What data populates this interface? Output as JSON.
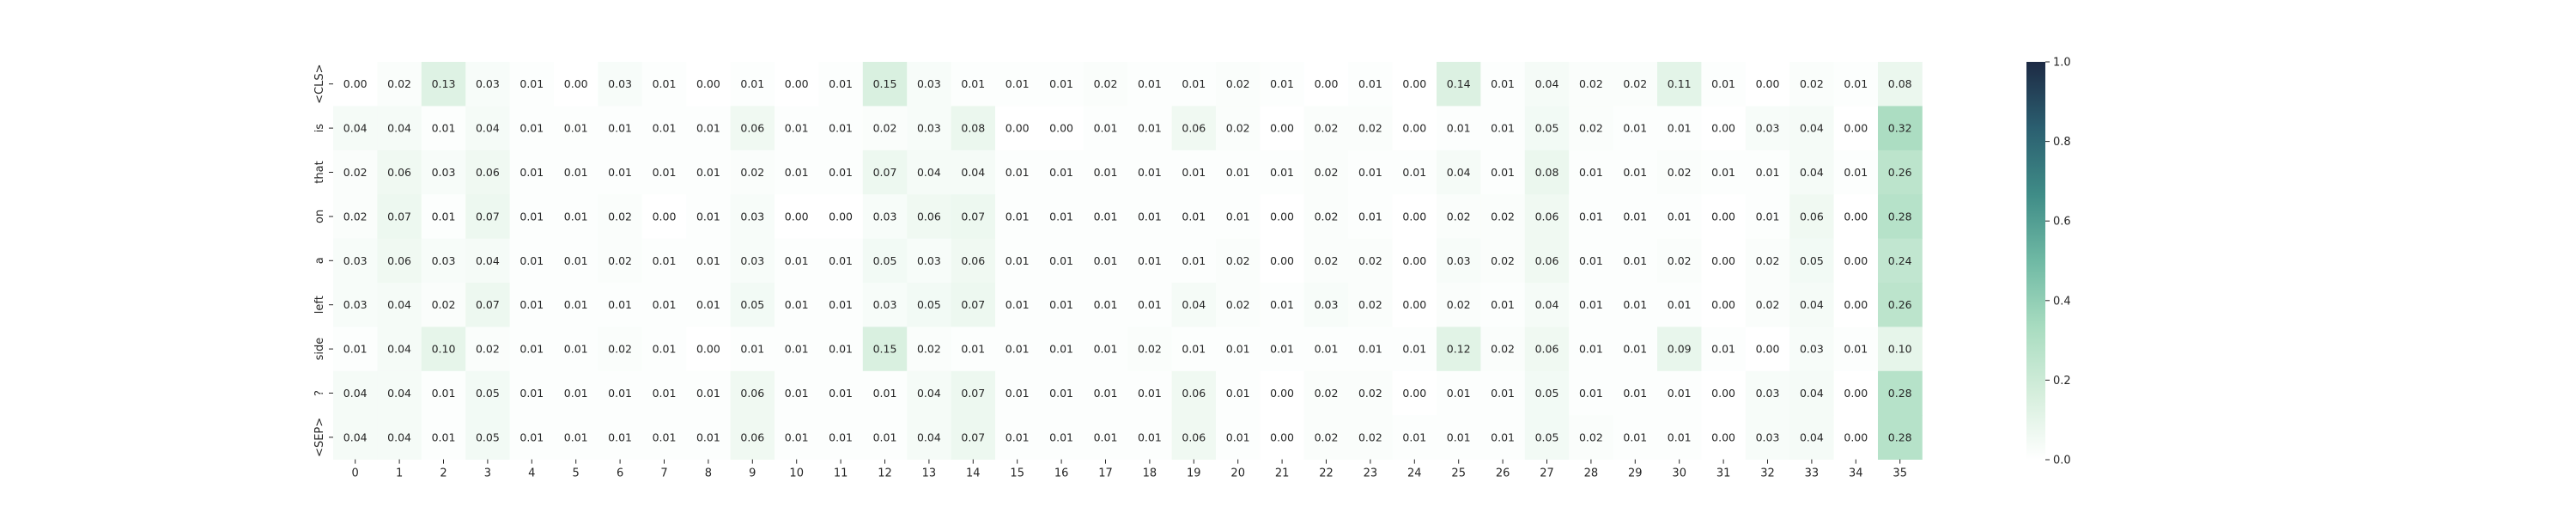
{
  "chart_data": {
    "type": "heatmap",
    "title": "",
    "xlabel": "",
    "ylabel": "",
    "x_tick_labels": [
      "0",
      "1",
      "2",
      "3",
      "4",
      "5",
      "6",
      "7",
      "8",
      "9",
      "10",
      "11",
      "12",
      "13",
      "14",
      "15",
      "16",
      "17",
      "18",
      "19",
      "20",
      "21",
      "22",
      "23",
      "24",
      "25",
      "26",
      "27",
      "28",
      "29",
      "30",
      "31",
      "32",
      "33",
      "34",
      "35"
    ],
    "y_tick_labels": [
      "<CLS>",
      "is",
      "that",
      "on",
      "a",
      "left",
      "side",
      "?",
      "<SEP>"
    ],
    "values": [
      [
        0.0,
        0.02,
        0.13,
        0.03,
        0.01,
        0.0,
        0.03,
        0.01,
        0.0,
        0.01,
        0.0,
        0.01,
        0.15,
        0.03,
        0.01,
        0.01,
        0.01,
        0.02,
        0.01,
        0.01,
        0.02,
        0.01,
        0.0,
        0.01,
        0.0,
        0.14,
        0.01,
        0.04,
        0.02,
        0.02,
        0.11,
        0.01,
        0.0,
        0.02,
        0.01,
        0.08
      ],
      [
        0.04,
        0.04,
        0.01,
        0.04,
        0.01,
        0.01,
        0.01,
        0.01,
        0.01,
        0.06,
        0.01,
        0.01,
        0.02,
        0.03,
        0.08,
        0.0,
        0.0,
        0.01,
        0.01,
        0.06,
        0.02,
        0.0,
        0.02,
        0.02,
        0.0,
        0.01,
        0.01,
        0.05,
        0.02,
        0.01,
        0.01,
        0.0,
        0.03,
        0.04,
        0.0,
        0.32
      ],
      [
        0.02,
        0.06,
        0.03,
        0.06,
        0.01,
        0.01,
        0.01,
        0.01,
        0.01,
        0.02,
        0.01,
        0.01,
        0.07,
        0.04,
        0.04,
        0.01,
        0.01,
        0.01,
        0.01,
        0.01,
        0.01,
        0.01,
        0.02,
        0.01,
        0.01,
        0.04,
        0.01,
        0.08,
        0.01,
        0.01,
        0.02,
        0.01,
        0.01,
        0.04,
        0.01,
        0.26
      ],
      [
        0.02,
        0.07,
        0.01,
        0.07,
        0.01,
        0.01,
        0.02,
        0.0,
        0.01,
        0.03,
        0.0,
        0.0,
        0.03,
        0.06,
        0.07,
        0.01,
        0.01,
        0.01,
        0.01,
        0.01,
        0.01,
        0.0,
        0.02,
        0.01,
        0.0,
        0.02,
        0.02,
        0.06,
        0.01,
        0.01,
        0.01,
        0.0,
        0.01,
        0.06,
        0.0,
        0.28
      ],
      [
        0.03,
        0.06,
        0.03,
        0.04,
        0.01,
        0.01,
        0.02,
        0.01,
        0.01,
        0.03,
        0.01,
        0.01,
        0.05,
        0.03,
        0.06,
        0.01,
        0.01,
        0.01,
        0.01,
        0.01,
        0.02,
        0.0,
        0.02,
        0.02,
        0.0,
        0.03,
        0.02,
        0.06,
        0.01,
        0.01,
        0.02,
        0.0,
        0.02,
        0.05,
        0.0,
        0.24
      ],
      [
        0.03,
        0.04,
        0.02,
        0.07,
        0.01,
        0.01,
        0.01,
        0.01,
        0.01,
        0.05,
        0.01,
        0.01,
        0.03,
        0.05,
        0.07,
        0.01,
        0.01,
        0.01,
        0.01,
        0.04,
        0.02,
        0.01,
        0.03,
        0.02,
        0.0,
        0.02,
        0.01,
        0.04,
        0.01,
        0.01,
        0.01,
        0.0,
        0.02,
        0.04,
        0.0,
        0.26
      ],
      [
        0.01,
        0.04,
        0.1,
        0.02,
        0.01,
        0.01,
        0.02,
        0.01,
        0.0,
        0.01,
        0.01,
        0.01,
        0.15,
        0.02,
        0.01,
        0.01,
        0.01,
        0.01,
        0.02,
        0.01,
        0.01,
        0.01,
        0.01,
        0.01,
        0.01,
        0.12,
        0.02,
        0.06,
        0.01,
        0.01,
        0.09,
        0.01,
        0.0,
        0.03,
        0.01,
        0.1
      ],
      [
        0.04,
        0.04,
        0.01,
        0.05,
        0.01,
        0.01,
        0.01,
        0.01,
        0.01,
        0.06,
        0.01,
        0.01,
        0.01,
        0.04,
        0.07,
        0.01,
        0.01,
        0.01,
        0.01,
        0.06,
        0.01,
        0.0,
        0.02,
        0.02,
        0.0,
        0.01,
        0.01,
        0.05,
        0.01,
        0.01,
        0.01,
        0.0,
        0.03,
        0.04,
        0.0,
        0.28
      ],
      [
        0.04,
        0.04,
        0.01,
        0.05,
        0.01,
        0.01,
        0.01,
        0.01,
        0.01,
        0.06,
        0.01,
        0.01,
        0.01,
        0.04,
        0.07,
        0.01,
        0.01,
        0.01,
        0.01,
        0.06,
        0.01,
        0.0,
        0.02,
        0.02,
        0.01,
        0.01,
        0.01,
        0.05,
        0.02,
        0.01,
        0.01,
        0.0,
        0.03,
        0.04,
        0.0,
        0.28
      ]
    ],
    "value_range": [
      0,
      1
    ],
    "colorbar": {
      "ticks": [
        "0.0",
        "0.2",
        "0.4",
        "0.6",
        "0.8",
        "1.0"
      ],
      "tick_values": [
        0,
        0.2,
        0.4,
        0.6,
        0.8,
        1.0
      ]
    },
    "colormap_stops": [
      "#ffffff",
      "#d5eedc",
      "#a8dcc0",
      "#6fb9a4",
      "#3f8c87",
      "#2b5f70",
      "#1d2a44"
    ],
    "grid": false,
    "legend": "none"
  }
}
